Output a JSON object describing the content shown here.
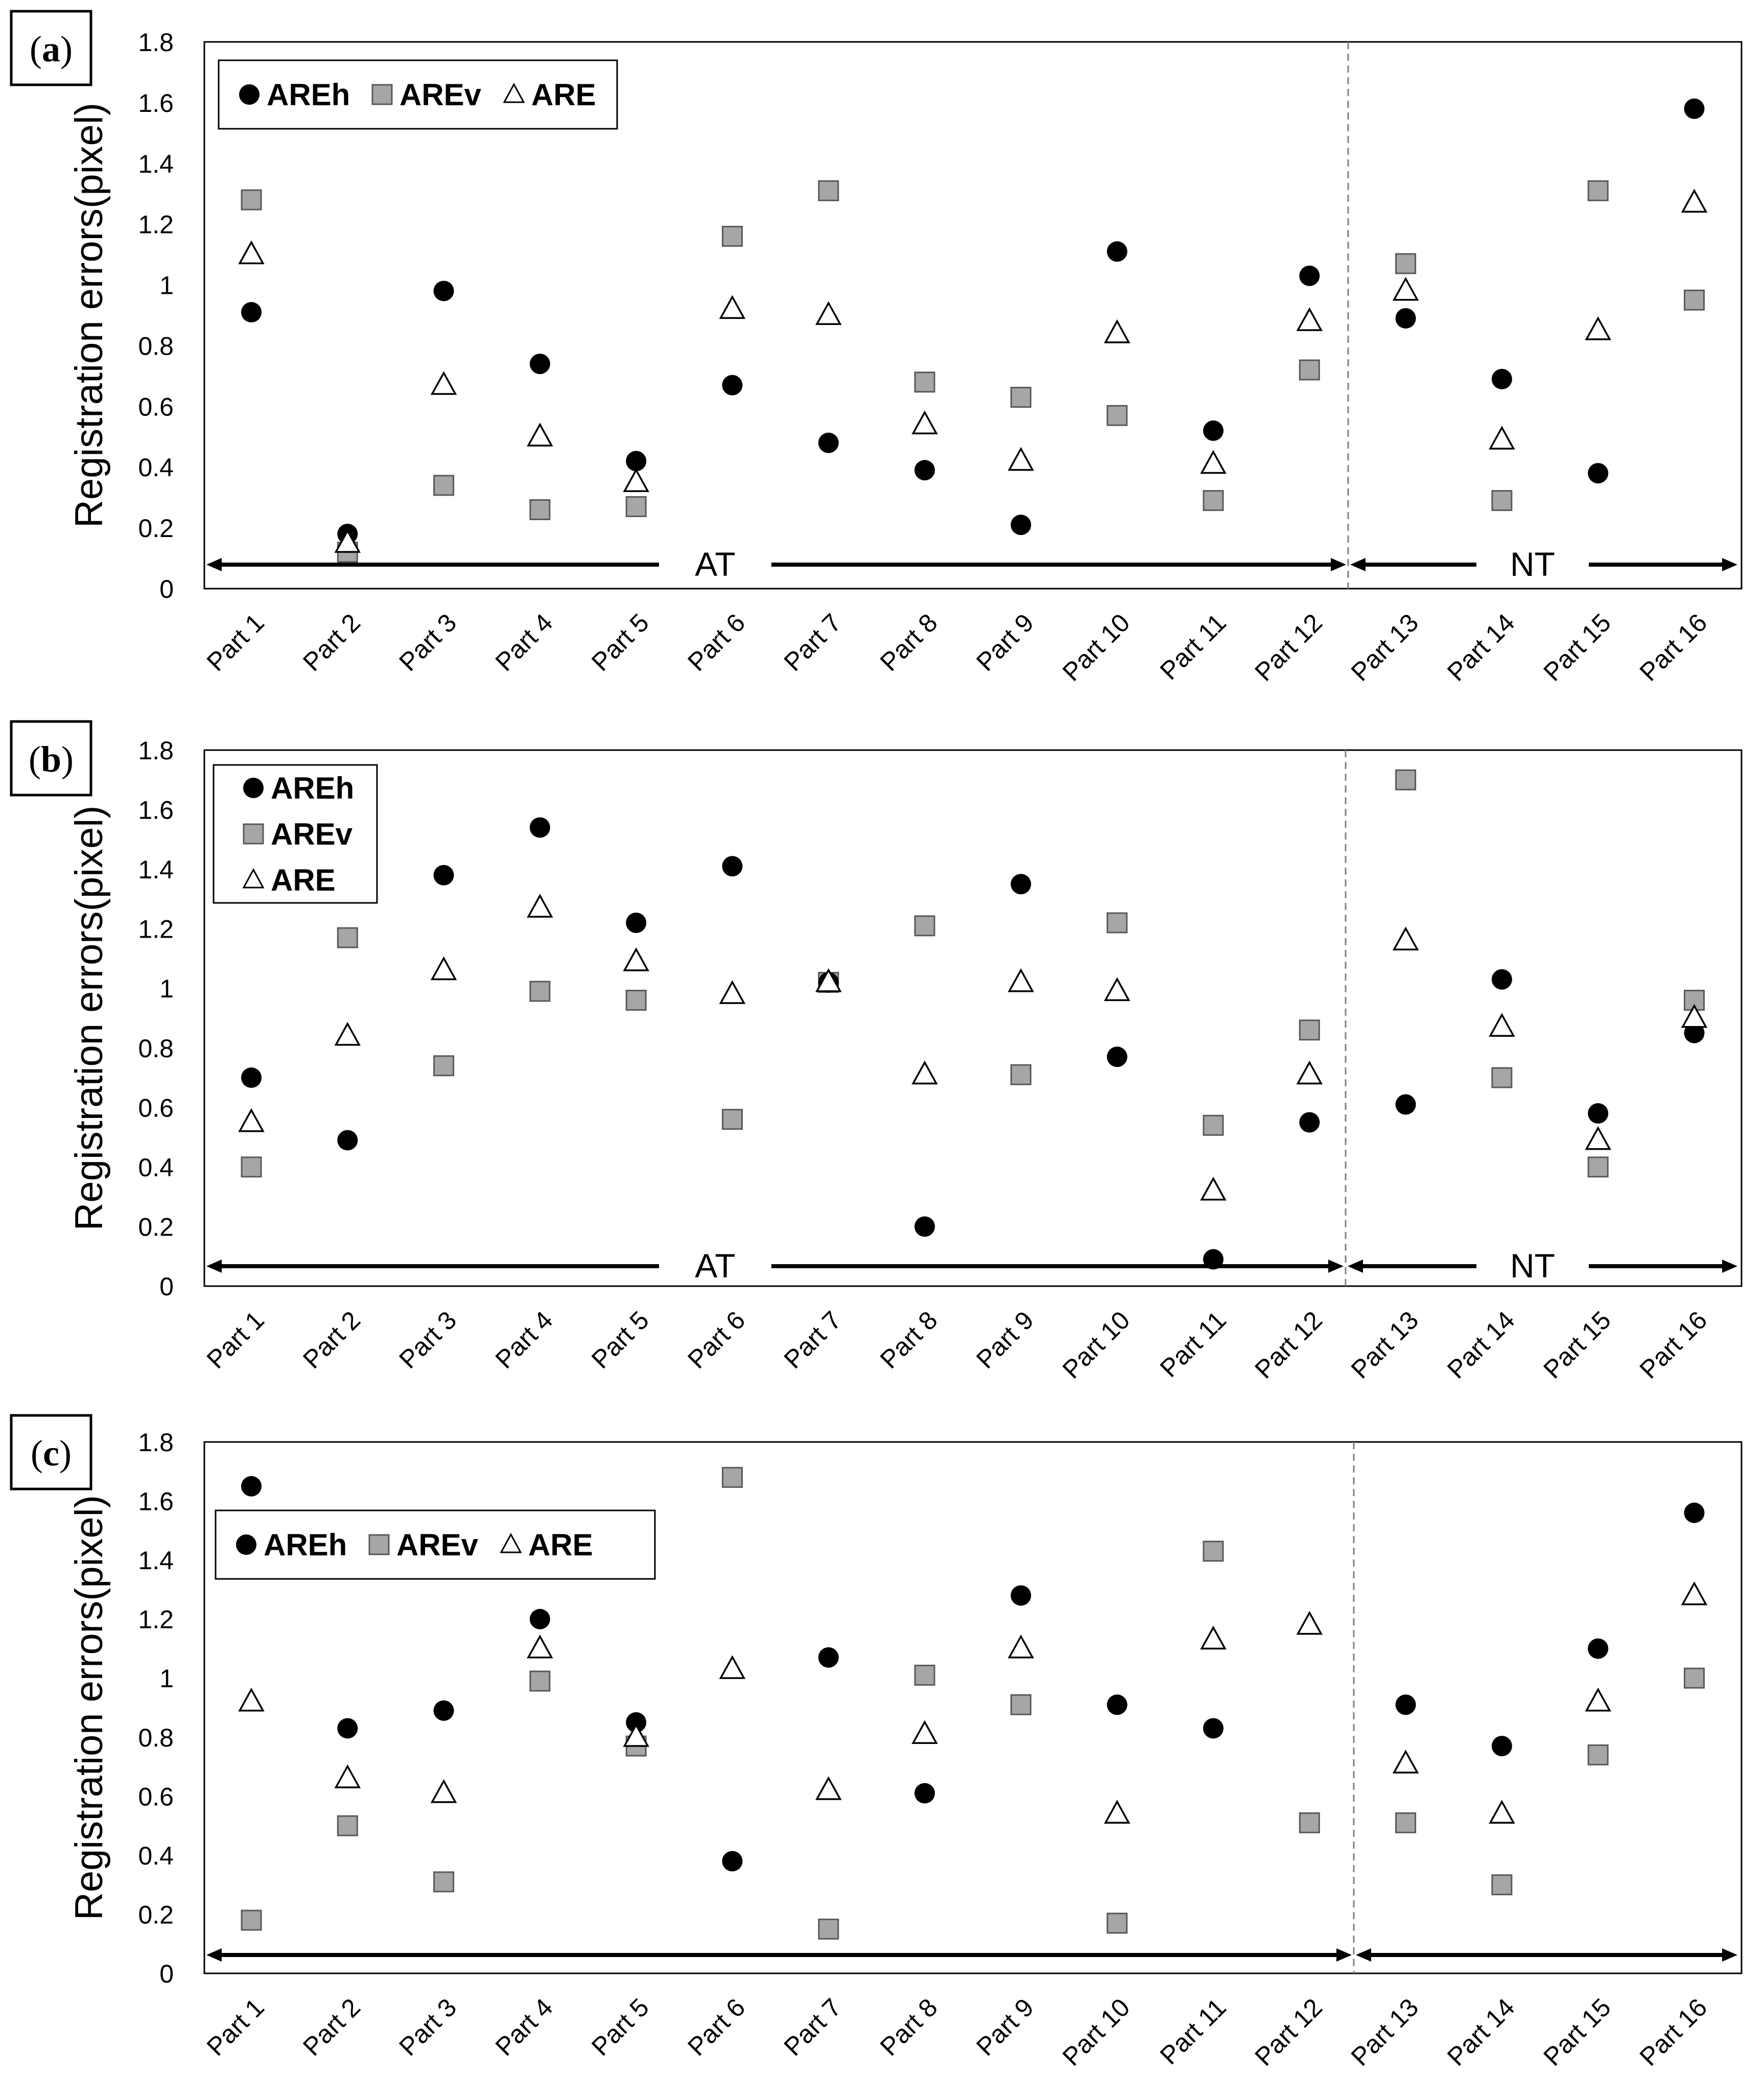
{
  "style": {
    "circle_color": "#000000",
    "square_fill": "#a6a6a6",
    "square_stroke": "#595959",
    "triangle_fill": "#ffffff",
    "triangle_stroke": "#000000",
    "divider_color": "#808080"
  },
  "categories": [
    "Part 1",
    "Part 2",
    "Part 3",
    "Part 4",
    "Part 5",
    "Part 6",
    "Part 7",
    "Part 8",
    "Part 9",
    "Part 10",
    "Part 11",
    "Part 12",
    "Part 13",
    "Part 14",
    "Part 15",
    "Part 16"
  ],
  "legend_labels": [
    "AREh",
    "AREv",
    "ARE"
  ],
  "chart_data": [
    {
      "type": "scatter",
      "panel_label_open": "(",
      "panel_label": "a",
      "panel_label_close": ")",
      "ylabel": "Registration errors(pixel)",
      "ylim": [
        0,
        1.8
      ],
      "yticks": [
        "0",
        "0.2",
        "0.4",
        "0.6",
        "0.8",
        "1",
        "1.2",
        "1.4",
        "1.6",
        "1.8"
      ],
      "legend_layout": "horizontal",
      "legend_position": "top-left",
      "group_labels": [
        "AT",
        "NT"
      ],
      "series": [
        {
          "name": "AREh",
          "marker": "circle",
          "values": [
            0.91,
            0.18,
            0.98,
            0.74,
            0.42,
            0.67,
            0.48,
            0.39,
            0.21,
            1.11,
            0.52,
            1.03,
            0.89,
            0.69,
            0.38,
            1.58
          ]
        },
        {
          "name": "AREv",
          "marker": "square",
          "values": [
            1.28,
            0.12,
            0.34,
            0.26,
            0.27,
            1.16,
            1.31,
            0.68,
            0.63,
            0.57,
            0.29,
            0.72,
            1.07,
            0.29,
            1.31,
            0.95
          ]
        },
        {
          "name": "ARE",
          "marker": "triangle",
          "values": [
            1.1,
            0.15,
            0.67,
            0.5,
            0.35,
            0.92,
            0.9,
            0.54,
            0.42,
            0.84,
            0.41,
            0.88,
            0.98,
            0.49,
            0.85,
            1.27
          ]
        }
      ]
    },
    {
      "type": "scatter",
      "panel_label_open": "(",
      "panel_label": "b",
      "panel_label_close": ")",
      "ylabel": "Registration errors(pixel)",
      "ylim": [
        0,
        1.8
      ],
      "yticks": [
        "0",
        "0.2",
        "0.4",
        "0.6",
        "0.8",
        "1",
        "1.2",
        "1.4",
        "1.6",
        "1.8"
      ],
      "legend_layout": "vertical",
      "legend_position": "top-left",
      "group_labels": [
        "AT",
        "NT"
      ],
      "series": [
        {
          "name": "AREh",
          "marker": "circle",
          "values": [
            0.7,
            0.49,
            1.38,
            1.54,
            1.22,
            1.41,
            1.02,
            0.2,
            1.35,
            0.77,
            0.09,
            0.55,
            0.61,
            1.03,
            0.58,
            0.85
          ]
        },
        {
          "name": "AREv",
          "marker": "square",
          "values": [
            0.4,
            1.17,
            0.74,
            0.99,
            0.96,
            0.56,
            1.02,
            1.21,
            0.71,
            1.22,
            0.54,
            0.86,
            1.7,
            0.7,
            0.4,
            0.96
          ]
        },
        {
          "name": "ARE",
          "marker": "triangle",
          "values": [
            0.55,
            0.84,
            1.06,
            1.27,
            1.09,
            0.98,
            1.02,
            0.71,
            1.02,
            0.99,
            0.32,
            0.71,
            1.16,
            0.87,
            0.49,
            0.9
          ]
        }
      ]
    },
    {
      "type": "scatter",
      "panel_label_open": "(",
      "panel_label": "c",
      "panel_label_close": ")",
      "ylabel": "Registration errors(pixel)",
      "ylim": [
        0,
        1.8
      ],
      "yticks": [
        "0",
        "0.2",
        "0.4",
        "0.6",
        "0.8",
        "1",
        "1.2",
        "1.4",
        "1.6",
        "1.8"
      ],
      "legend_layout": "horizontal",
      "legend_position": "top-left",
      "group_labels": [
        "",
        ""
      ],
      "series": [
        {
          "name": "AREh",
          "marker": "circle",
          "values": [
            1.65,
            0.83,
            0.89,
            1.2,
            0.85,
            0.38,
            1.07,
            0.61,
            1.28,
            0.91,
            0.83,
            null,
            0.91,
            0.77,
            1.1,
            1.56
          ]
        },
        {
          "name": "AREv",
          "marker": "square",
          "values": [
            0.18,
            0.5,
            0.31,
            0.99,
            0.77,
            1.68,
            0.15,
            1.01,
            0.91,
            0.17,
            1.43,
            0.51,
            0.51,
            0.3,
            0.74,
            1.0
          ]
        },
        {
          "name": "ARE",
          "marker": "triangle",
          "values": [
            0.92,
            0.66,
            0.61,
            1.1,
            0.8,
            1.03,
            0.62,
            0.81,
            1.1,
            0.54,
            1.13,
            1.18,
            0.71,
            0.54,
            0.92,
            1.28
          ]
        }
      ]
    }
  ]
}
